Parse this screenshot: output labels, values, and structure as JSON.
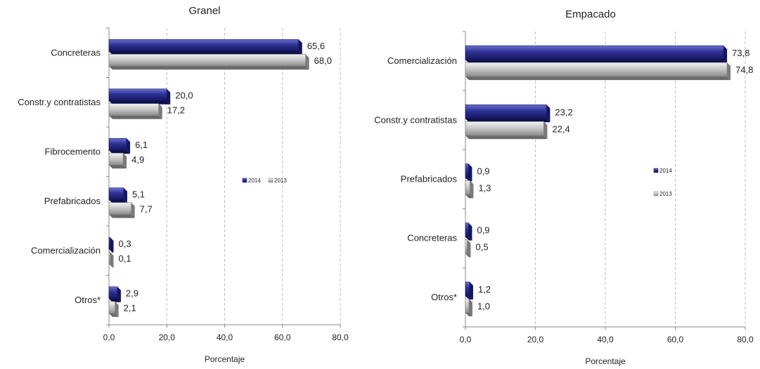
{
  "chart_data": [
    {
      "type": "bar",
      "orientation": "horizontal",
      "title": "Granel",
      "xlabel": "Porcentaje",
      "xlim": [
        0,
        80
      ],
      "xticks": [
        "0,0",
        "20,0",
        "40,0",
        "60,0",
        "80,0"
      ],
      "grid": "vertical-dashed",
      "legend": "middle-right",
      "categories": [
        "Concreteras",
        "Constr.y contratistas",
        "Fibrocemento",
        "Prefabricados",
        "Comercialización",
        "Otros*"
      ],
      "series": [
        {
          "name": "2014",
          "color": "#2e3192",
          "values": [
            65.6,
            20.0,
            6.1,
            5.1,
            0.3,
            2.9
          ],
          "labels": [
            "65,6",
            "20,0",
            "6,1",
            "5,1",
            "0,3",
            "2,9"
          ]
        },
        {
          "name": "2013",
          "color": "#b8b8b8",
          "values": [
            68.0,
            17.2,
            4.9,
            7.7,
            0.1,
            2.1
          ],
          "labels": [
            "68,0",
            "17,2",
            "4,9",
            "7,7",
            "0,1",
            "2,1"
          ]
        }
      ]
    },
    {
      "type": "bar",
      "orientation": "horizontal",
      "title": "Empacado",
      "xlabel": "Porcentaje",
      "xlim": [
        0,
        80
      ],
      "xticks": [
        "0,0",
        "20,0",
        "40,0",
        "60,0",
        "80,0"
      ],
      "grid": "vertical-dashed",
      "legend": "middle-right",
      "categories": [
        "Comercialización",
        "Constr.y contratistas",
        "Prefabricados",
        "Concreteras",
        "Otros*"
      ],
      "series": [
        {
          "name": "2014",
          "color": "#2e3192",
          "values": [
            73.8,
            23.2,
            0.9,
            0.9,
            1.2
          ],
          "labels": [
            "73,8",
            "23,2",
            "0,9",
            "0,9",
            "1,2"
          ]
        },
        {
          "name": "2013",
          "color": "#b8b8b8",
          "values": [
            74.8,
            22.4,
            1.3,
            0.5,
            1.0
          ],
          "labels": [
            "74,8",
            "22,4",
            "1,3",
            "0,5",
            "1,0"
          ]
        }
      ]
    }
  ]
}
